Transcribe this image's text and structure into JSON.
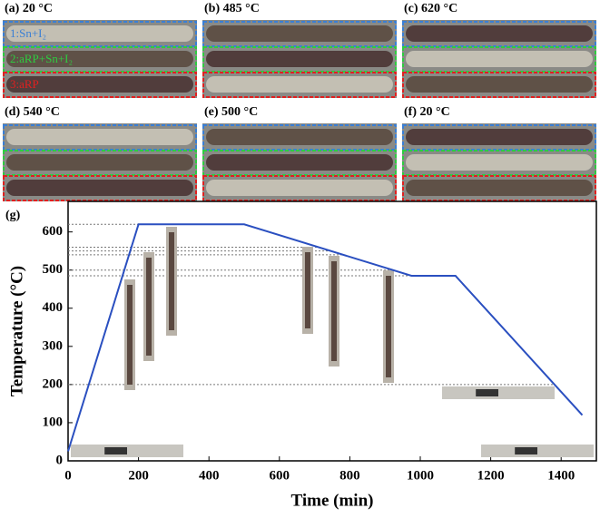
{
  "panels": [
    {
      "label": "(a) 20 °C"
    },
    {
      "label": "(b) 485 °C"
    },
    {
      "label": "(c) 620 °C"
    },
    {
      "label": "(d) 540 °C"
    },
    {
      "label": "(e) 500 °C"
    },
    {
      "label": "(f) 20 °C"
    }
  ],
  "tube_legend": [
    {
      "text": "1:Sn+I₂",
      "color": "#3a7fd5"
    },
    {
      "text": "2:aRP+Sn+I₂",
      "color": "#2ecc40"
    },
    {
      "text": "3:aRP",
      "color": "#e02020"
    }
  ],
  "chart_data": {
    "type": "line",
    "panel": "(g)",
    "x_label": "Time (min)",
    "y_label": "Temperature (°C)",
    "x": [
      0,
      200,
      500,
      975,
      1100,
      1460
    ],
    "values": [
      25,
      620,
      620,
      485,
      485,
      120
    ],
    "color": "#2a4fc0",
    "xlim": [
      0,
      1500
    ],
    "xticks": [
      0,
      200,
      400,
      600,
      800,
      1000,
      1200,
      1400
    ],
    "ylim": [
      0,
      680
    ],
    "yticks": [
      0,
      100,
      200,
      300,
      400,
      500,
      600
    ],
    "reference_lines": [
      620,
      560,
      550,
      540,
      500,
      485,
      200
    ]
  }
}
